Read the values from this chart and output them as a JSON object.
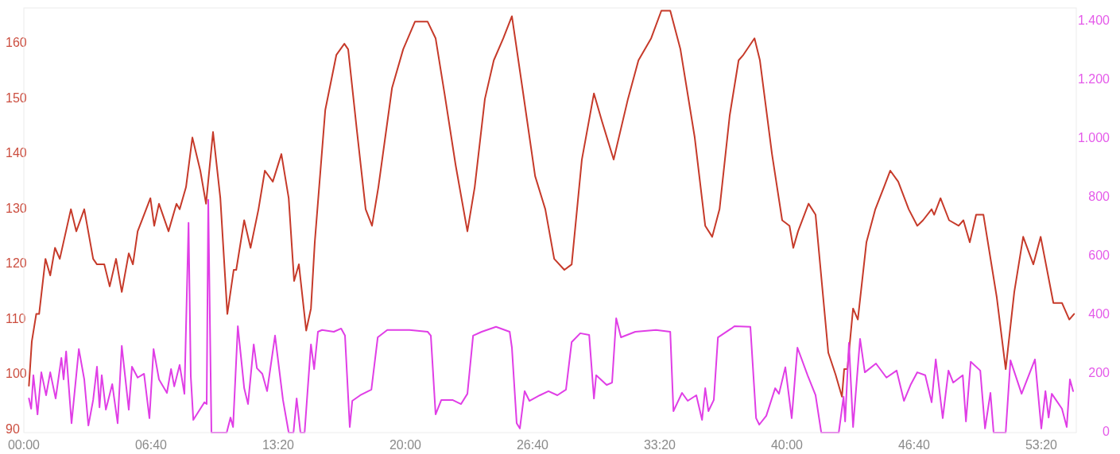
{
  "chart_data": {
    "type": "line",
    "xlim": [
      0,
      3310
    ],
    "xticks": [
      {
        "value": 0,
        "label": "00:00"
      },
      {
        "value": 400,
        "label": "06:40"
      },
      {
        "value": 800,
        "label": "13:20"
      },
      {
        "value": 1200,
        "label": "20:00"
      },
      {
        "value": 1600,
        "label": "26:40"
      },
      {
        "value": 2000,
        "label": "33:20"
      },
      {
        "value": 2400,
        "label": "40:00"
      },
      {
        "value": 2800,
        "label": "46:40"
      },
      {
        "value": 3200,
        "label": "53:20"
      }
    ],
    "ylim": [
      89.5,
      166.5
    ],
    "yticks": [
      90,
      100,
      110,
      120,
      130,
      140,
      150,
      160
    ],
    "y2lim": [
      0,
      1445
    ],
    "y2ticks": [
      0,
      200,
      400,
      600,
      800,
      {
        "value": 1000,
        "label": "1.000"
      },
      {
        "value": 1200,
        "label": "1.200"
      },
      {
        "value": 1400,
        "label": "1.400"
      }
    ],
    "grid": false,
    "marker": "none",
    "line_style": "solid",
    "series": [
      {
        "color": "#c63a2a",
        "x": [
          16,
          25,
          39,
          48,
          58,
          68,
          83,
          98,
          113,
          148,
          165,
          190,
          218,
          230,
          240,
          253,
          270,
          290,
          308,
          330,
          343,
          358,
          378,
          398,
          410,
          425,
          455,
          480,
          490,
          510,
          530,
          555,
          573,
          595,
          618,
          640,
          660,
          668,
          693,
          713,
          738,
          758,
          783,
          810,
          833,
          850,
          865,
          888,
          903,
          915,
          948,
          983,
          1008,
          1020,
          1048,
          1075,
          1095,
          1115,
          1158,
          1193,
          1230,
          1270,
          1295,
          1323,
          1358,
          1395,
          1418,
          1450,
          1478,
          1508,
          1535,
          1568,
          1608,
          1640,
          1668,
          1700,
          1723,
          1755,
          1793,
          1818,
          1855,
          1900,
          1933,
          1973,
          2005,
          2033,
          2065,
          2110,
          2143,
          2165,
          2188,
          2220,
          2248,
          2263,
          2298,
          2315,
          2353,
          2385,
          2408,
          2420,
          2435,
          2468,
          2490,
          2530,
          2553,
          2573,
          2580,
          2590,
          2608,
          2623,
          2650,
          2678,
          2705,
          2725,
          2750,
          2783,
          2810,
          2828,
          2855,
          2863,
          2883,
          2910,
          2940,
          2955,
          2975,
          2995,
          3018,
          3060,
          3088,
          3115,
          3143,
          3175,
          3198,
          3238,
          3265,
          3288,
          3303
        ],
        "values": [
          98,
          106,
          111,
          111,
          116,
          121,
          118,
          123,
          121,
          130,
          126,
          130,
          121,
          120,
          120,
          120,
          116,
          121,
          115,
          122,
          120,
          126,
          129,
          132,
          127,
          131,
          126,
          131,
          130,
          134,
          143,
          137,
          131,
          144,
          132,
          111,
          119,
          119,
          128,
          123,
          130,
          137,
          135,
          140,
          132,
          117,
          120,
          108,
          112,
          124,
          148,
          158,
          160,
          159,
          144,
          130,
          127,
          134,
          152,
          159,
          164,
          164,
          161,
          151,
          138,
          126,
          134,
          150,
          157,
          161,
          165,
          152,
          136,
          130,
          121,
          119,
          120,
          139,
          151,
          146,
          139,
          150,
          157,
          161,
          166,
          166,
          159,
          143,
          127,
          125,
          130,
          147,
          157,
          158,
          161,
          157,
          140,
          128,
          127,
          123,
          126,
          131,
          129,
          104,
          100,
          96,
          101,
          101,
          112,
          110,
          124,
          130,
          134,
          137,
          135,
          130,
          127,
          128,
          130,
          129,
          132,
          128,
          127,
          128,
          124,
          129,
          129,
          114,
          101,
          115,
          125,
          120,
          125,
          113,
          113,
          110,
          111
        ]
      },
      {
        "color": "#e03ee6",
        "axis": "y2",
        "x": [
          16,
          23,
          30,
          43,
          55,
          70,
          83,
          100,
          118,
          125,
          133,
          150,
          173,
          190,
          203,
          218,
          230,
          238,
          245,
          258,
          278,
          295,
          308,
          330,
          340,
          358,
          378,
          395,
          408,
          425,
          450,
          463,
          473,
          490,
          505,
          518,
          525,
          533,
          555,
          568,
          575,
          580,
          590,
          638,
          650,
          658,
          673,
          693,
          705,
          723,
          733,
          750,
          765,
          790,
          815,
          833,
          848,
          858,
          870,
          883,
          893,
          903,
          913,
          925,
          938,
          975,
          998,
          1010,
          1025,
          1033,
          1058,
          1083,
          1093,
          1113,
          1143,
          1213,
          1270,
          1280,
          1295,
          1313,
          1348,
          1375,
          1395,
          1413,
          1440,
          1485,
          1528,
          1535,
          1550,
          1560,
          1575,
          1590,
          1623,
          1650,
          1678,
          1705,
          1723,
          1750,
          1778,
          1793,
          1800,
          1833,
          1850,
          1863,
          1878,
          1923,
          1988,
          2033,
          2043,
          2070,
          2088,
          2115,
          2133,
          2143,
          2153,
          2170,
          2183,
          2225,
          2235,
          2285,
          2303,
          2313,
          2335,
          2363,
          2375,
          2395,
          2415,
          2433,
          2465,
          2490,
          2508,
          2563,
          2578,
          2583,
          2595,
          2608,
          2630,
          2645,
          2680,
          2713,
          2745,
          2768,
          2790,
          2810,
          2835,
          2855,
          2868,
          2890,
          2908,
          2923,
          2953,
          2963,
          2978,
          3008,
          3023,
          3040,
          3050,
          3088,
          3103,
          3138,
          3180,
          3200,
          3213,
          3223,
          3233,
          3265,
          3280,
          3290,
          3300
        ],
        "values": [
          116,
          81,
          195,
          62,
          205,
          127,
          205,
          116,
          254,
          181,
          276,
          32,
          284,
          181,
          24,
          111,
          224,
          86,
          195,
          78,
          165,
          32,
          295,
          78,
          224,
          187,
          200,
          49,
          284,
          181,
          135,
          216,
          157,
          230,
          132,
          714,
          192,
          43,
          81,
          103,
          97,
          792,
          0,
          0,
          51,
          19,
          362,
          151,
          97,
          300,
          219,
          200,
          141,
          330,
          111,
          0,
          0,
          116,
          0,
          0,
          151,
          300,
          216,
          343,
          349,
          343,
          354,
          330,
          19,
          108,
          127,
          141,
          146,
          324,
          349,
          349,
          343,
          330,
          62,
          111,
          111,
          97,
          132,
          330,
          343,
          360,
          343,
          289,
          32,
          14,
          141,
          108,
          127,
          141,
          127,
          146,
          308,
          338,
          332,
          116,
          195,
          162,
          170,
          389,
          324,
          343,
          349,
          343,
          73,
          135,
          108,
          127,
          43,
          151,
          73,
          111,
          324,
          354,
          362,
          360,
          49,
          27,
          57,
          151,
          132,
          222,
          49,
          289,
          195,
          127,
          0,
          0,
          122,
          38,
          305,
          19,
          319,
          205,
          235,
          187,
          211,
          108,
          165,
          205,
          195,
          103,
          249,
          49,
          211,
          170,
          195,
          38,
          241,
          211,
          14,
          135,
          0,
          0,
          246,
          132,
          249,
          14,
          141,
          51,
          132,
          81,
          19,
          181,
          141
        ]
      }
    ]
  }
}
